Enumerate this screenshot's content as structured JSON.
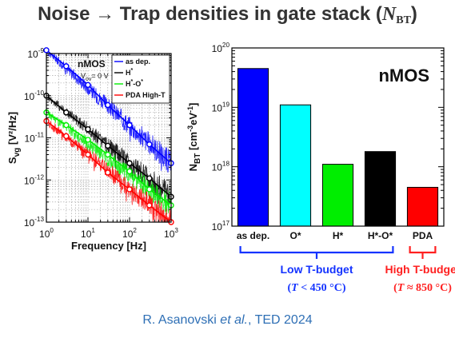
{
  "slide": {
    "title_prefix": "Noise → Trap densities in gate stack (",
    "title_symbol": "N",
    "title_subscript": "BT",
    "title_suffix": ")",
    "citation_authors": "R. Asanovski ",
    "citation_etal": "et al.",
    "citation_venue": ", TED 2024"
  },
  "colors": {
    "as_dep": "#0000ff",
    "o_star": "#00ffff",
    "h_star": "#00ee00",
    "ho_star": "#000000",
    "pda": "#ff0000",
    "low_budget": "#1433ff",
    "high_budget": "#ff2020"
  },
  "chart_data": [
    {
      "type": "line",
      "title": "",
      "xlabel": "Frequency [Hz]",
      "ylabel": "S_vg [V²/Hz]",
      "x_scale": "log",
      "y_scale": "log",
      "xlim": [
        1,
        1000
      ],
      "ylim": [
        1e-13,
        1e-09
      ],
      "x_ticks": [
        "10^0",
        "10^1",
        "10^2",
        "10^3"
      ],
      "y_ticks": [
        "10^-9",
        "10^-10",
        "10^-11",
        "10^-12",
        "10^-13"
      ],
      "annotation_title": "nMOS",
      "annotation_bias": "V_ov = 0 V",
      "legend_position": "top-right",
      "series": [
        {
          "name": "as dep.",
          "color": "#0000ff",
          "x": [
            1,
            3,
            10,
            30,
            100,
            300,
            1000
          ],
          "y": [
            1.2e-09,
            5e-10,
            1.8e-10,
            6e-11,
            2e-11,
            7e-12,
            2.5e-12
          ]
        },
        {
          "name": "H*",
          "color": "#000000",
          "x": [
            1,
            3,
            10,
            30,
            100,
            300,
            1000
          ],
          "y": [
            1e-10,
            4e-11,
            1.6e-11,
            6.5e-12,
            2.5e-12,
            1.1e-12,
            4e-13
          ]
        },
        {
          "name": "H*-O*",
          "color": "#00ee00",
          "x": [
            1,
            3,
            10,
            30,
            100,
            300,
            1000
          ],
          "y": [
            4e-11,
            2e-11,
            9e-12,
            4e-12,
            1.6e-12,
            6e-13,
            2.5e-13
          ]
        },
        {
          "name": "PDA High-T",
          "color": "#ff0000",
          "x": [
            1,
            3,
            10,
            30,
            100,
            300,
            1000
          ],
          "y": [
            2.5e-11,
            1.1e-11,
            4e-12,
            1.5e-12,
            6e-13,
            2.5e-13,
            1e-13
          ]
        }
      ]
    },
    {
      "type": "bar",
      "title": "nMOS",
      "xlabel": "",
      "ylabel": "N_BT [cm⁻³eV⁻¹]",
      "y_scale": "log",
      "ylim": [
        1e+17,
        1e+20
      ],
      "y_ticks": [
        "10^20",
        "10^19",
        "10^18",
        "10^17"
      ],
      "categories": [
        "as dep.",
        "O*",
        "H*",
        "H*-O*",
        "PDA"
      ],
      "values": [
        4.5e+19,
        1.1e+19,
        1.1e+18,
        1.8e+18,
        4.5e+17
      ],
      "groups": [
        {
          "label": "Low T-budget",
          "condition_T": "T",
          "condition_rel": " < 450 °C",
          "members": [
            "as dep.",
            "O*",
            "H*",
            "H*-O*"
          ]
        },
        {
          "label": "High T-budget",
          "condition_T": "T",
          "condition_rel": " ≈ 850 °C",
          "members": [
            "PDA"
          ]
        }
      ]
    }
  ]
}
